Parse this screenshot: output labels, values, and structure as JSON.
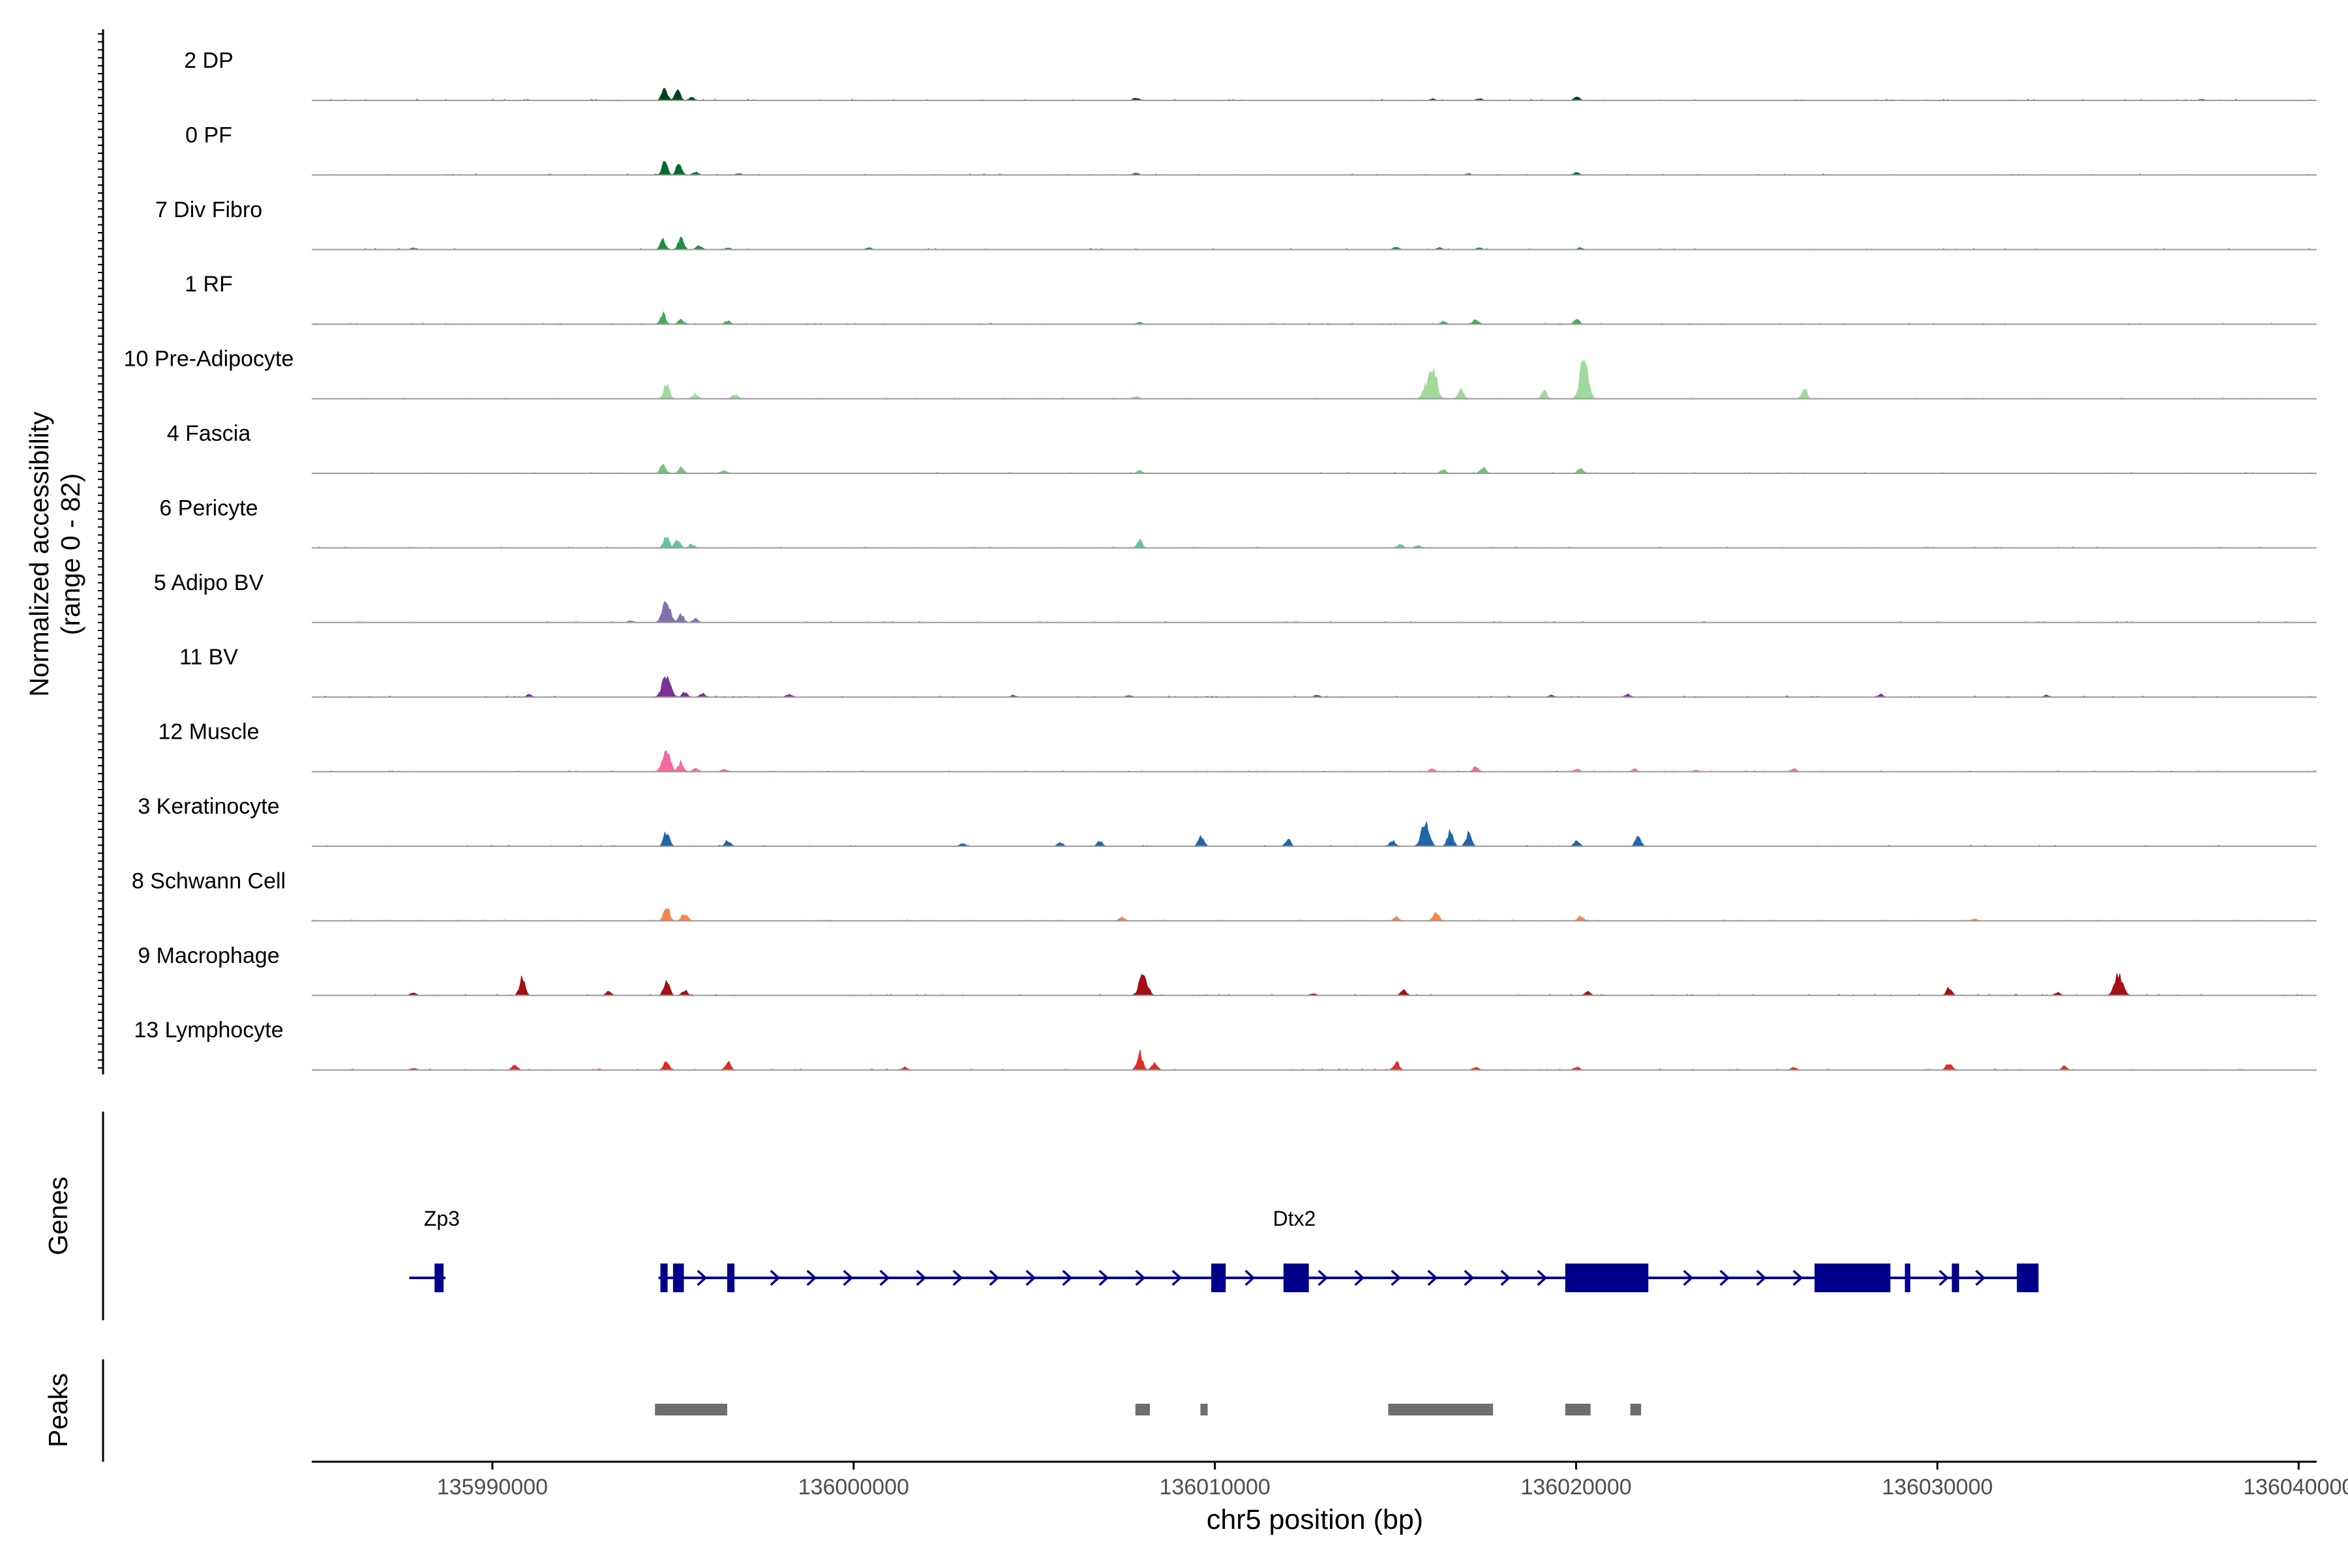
{
  "chart_data": {
    "type": "area",
    "title": "",
    "chromosome": "chr5",
    "xlabel": "chr5 position (bp)",
    "ylabel_line1": "Normalized accessibility",
    "ylabel_line2": "(range 0 - 82)",
    "ylim": [
      0,
      82
    ],
    "xlim": [
      135985000,
      136040500
    ],
    "xticks": [
      135990000,
      136000000,
      136010000,
      136020000,
      136030000,
      136040000
    ],
    "xtick_labels": [
      "135990000",
      "136000000",
      "136010000",
      "136020000",
      "136030000",
      "136040000"
    ],
    "tracks": [
      {
        "name": "2 DP",
        "color": "#00441b",
        "peaks": [
          [
            135994750,
            14
          ],
          [
            135995100,
            12
          ],
          [
            135995500,
            3
          ],
          [
            136007800,
            3
          ],
          [
            136017300,
            2
          ],
          [
            136020000,
            4
          ],
          [
            136016000,
            1.5
          ],
          [
            136037300,
            1
          ]
        ]
      },
      {
        "name": "0 PF",
        "color": "#006d2c",
        "peaks": [
          [
            135994750,
            14
          ],
          [
            135995150,
            13
          ],
          [
            135995600,
            3
          ],
          [
            135996800,
            1.5
          ],
          [
            136007800,
            2
          ],
          [
            136017000,
            1.5
          ],
          [
            136020000,
            3
          ]
        ]
      },
      {
        "name": "7 Div Fibro",
        "color": "#238b45",
        "peaks": [
          [
            135987800,
            2
          ],
          [
            135994700,
            11
          ],
          [
            135995200,
            12
          ],
          [
            135995700,
            4
          ],
          [
            135996500,
            2
          ],
          [
            136000400,
            2
          ],
          [
            136015000,
            3
          ],
          [
            136016200,
            2
          ],
          [
            136017300,
            2
          ],
          [
            136020100,
            2
          ]
        ]
      },
      {
        "name": "1 RF",
        "color": "#41ab5d",
        "peaks": [
          [
            135994700,
            12
          ],
          [
            135995200,
            5
          ],
          [
            135996500,
            4
          ],
          [
            136007900,
            2
          ],
          [
            136016300,
            3
          ],
          [
            136017200,
            5
          ],
          [
            136020000,
            5
          ]
        ]
      },
      {
        "name": "10 Pre-Adipocyte",
        "color": "#a1d99b",
        "peaks": [
          [
            135994800,
            16
          ],
          [
            135995600,
            5
          ],
          [
            135996700,
            5
          ],
          [
            136007800,
            3
          ],
          [
            136015800,
            14
          ],
          [
            136016000,
            38
          ],
          [
            136016800,
            10
          ],
          [
            136019100,
            8
          ],
          [
            136020200,
            42
          ],
          [
            136026300,
            11
          ]
        ]
      },
      {
        "name": "4 Fascia",
        "color": "#74c476",
        "peaks": [
          [
            135994700,
            10
          ],
          [
            135995200,
            6
          ],
          [
            135996400,
            3
          ],
          [
            136007900,
            3
          ],
          [
            136016300,
            4
          ],
          [
            136017400,
            7
          ],
          [
            136020100,
            5
          ]
        ]
      },
      {
        "name": "6 Pericyte",
        "color": "#66c2a5",
        "peaks": [
          [
            135994800,
            14
          ],
          [
            135995100,
            10
          ],
          [
            135995500,
            4
          ],
          [
            136007900,
            8
          ],
          [
            136015100,
            4
          ],
          [
            136015600,
            3
          ]
        ]
      },
      {
        "name": "5 Adipo BV",
        "color": "#8073ac",
        "peaks": [
          [
            135994800,
            22
          ],
          [
            135995200,
            9
          ],
          [
            135995600,
            4
          ],
          [
            135993800,
            2
          ]
        ]
      },
      {
        "name": "11 BV",
        "color": "#7b3294",
        "peaks": [
          [
            135991000,
            3
          ],
          [
            135994800,
            26
          ],
          [
            135995300,
            5
          ],
          [
            135995800,
            4
          ],
          [
            135998200,
            3
          ],
          [
            136004400,
            2
          ],
          [
            136007600,
            2
          ],
          [
            136012800,
            2
          ],
          [
            136019300,
            2
          ],
          [
            136021400,
            3
          ],
          [
            136028400,
            3
          ],
          [
            136033000,
            2
          ]
        ]
      },
      {
        "name": "12 Muscle",
        "color": "#f768a1",
        "peaks": [
          [
            135994800,
            24
          ],
          [
            135995200,
            10
          ],
          [
            135995600,
            4
          ],
          [
            135996400,
            3
          ],
          [
            136016000,
            3
          ],
          [
            136017200,
            5
          ],
          [
            136020000,
            3
          ],
          [
            136021600,
            3
          ],
          [
            136023300,
            2
          ],
          [
            136026000,
            3
          ]
        ]
      },
      {
        "name": "3 Keratinocyte",
        "color": "#2166ac",
        "peaks": [
          [
            135994800,
            17
          ],
          [
            135996500,
            6
          ],
          [
            136003000,
            3
          ],
          [
            136005700,
            4
          ],
          [
            136006800,
            5
          ],
          [
            136009600,
            12
          ],
          [
            136012000,
            8
          ],
          [
            136014900,
            6
          ],
          [
            136015800,
            25
          ],
          [
            136016500,
            18
          ],
          [
            136017000,
            14
          ],
          [
            136020000,
            6
          ],
          [
            136021700,
            12
          ]
        ]
      },
      {
        "name": "8 Schwann Cell",
        "color": "#f4874b",
        "peaks": [
          [
            135994800,
            18
          ],
          [
            135995300,
            9
          ],
          [
            136007400,
            4
          ],
          [
            136015000,
            4
          ],
          [
            136016100,
            10
          ],
          [
            136020100,
            5
          ],
          [
            136031000,
            2
          ]
        ]
      },
      {
        "name": "9 Macrophage",
        "color": "#a50f15",
        "peaks": [
          [
            135987800,
            3
          ],
          [
            135990800,
            18
          ],
          [
            135993200,
            4
          ],
          [
            135994800,
            18
          ],
          [
            135995300,
            6
          ],
          [
            136008000,
            24
          ],
          [
            136015200,
            6
          ],
          [
            136012700,
            2
          ],
          [
            136020300,
            4
          ],
          [
            136030300,
            8
          ],
          [
            136035000,
            22
          ],
          [
            136033300,
            3
          ]
        ]
      },
      {
        "name": "13 Lymphocyte",
        "color": "#de2d26",
        "peaks": [
          [
            135987800,
            2
          ],
          [
            135990600,
            6
          ],
          [
            135994800,
            10
          ],
          [
            135996500,
            10
          ],
          [
            136001400,
            3
          ],
          [
            136007900,
            20
          ],
          [
            136008300,
            9
          ],
          [
            136015000,
            9
          ],
          [
            136017200,
            3
          ],
          [
            136020000,
            3
          ],
          [
            136026000,
            3
          ],
          [
            136030300,
            8
          ],
          [
            136033500,
            4
          ]
        ]
      }
    ],
    "genes_label": "Genes",
    "gene_color": "#00008b",
    "genes": [
      {
        "name": "Zp3",
        "start": 135987700,
        "end": 135988700,
        "label_pos": 135988600,
        "exons": [
          [
            135988400,
            135988650
          ]
        ]
      },
      {
        "name": "Dtx2",
        "start": 135994600,
        "end": 136032800,
        "label_pos": 136012200,
        "exons": [
          [
            135994650,
            135994850
          ],
          [
            135995000,
            135995300
          ],
          [
            135996500,
            135996700
          ],
          [
            136009900,
            136010300
          ],
          [
            136011900,
            136012600
          ],
          [
            136019700,
            136022000
          ],
          [
            136026600,
            136028700
          ],
          [
            136029100,
            136029250
          ],
          [
            136030400,
            136030600
          ],
          [
            136032200,
            136032800
          ]
        ]
      }
    ],
    "peaks_label": "Peaks",
    "peak_color": "#6e6e6e",
    "peak_regions": [
      [
        135994500,
        135996500
      ],
      [
        136007800,
        136008200
      ],
      [
        136009600,
        136009800
      ],
      [
        136014800,
        136017700
      ],
      [
        136019700,
        136020400
      ],
      [
        136021500,
        136021800
      ]
    ]
  }
}
